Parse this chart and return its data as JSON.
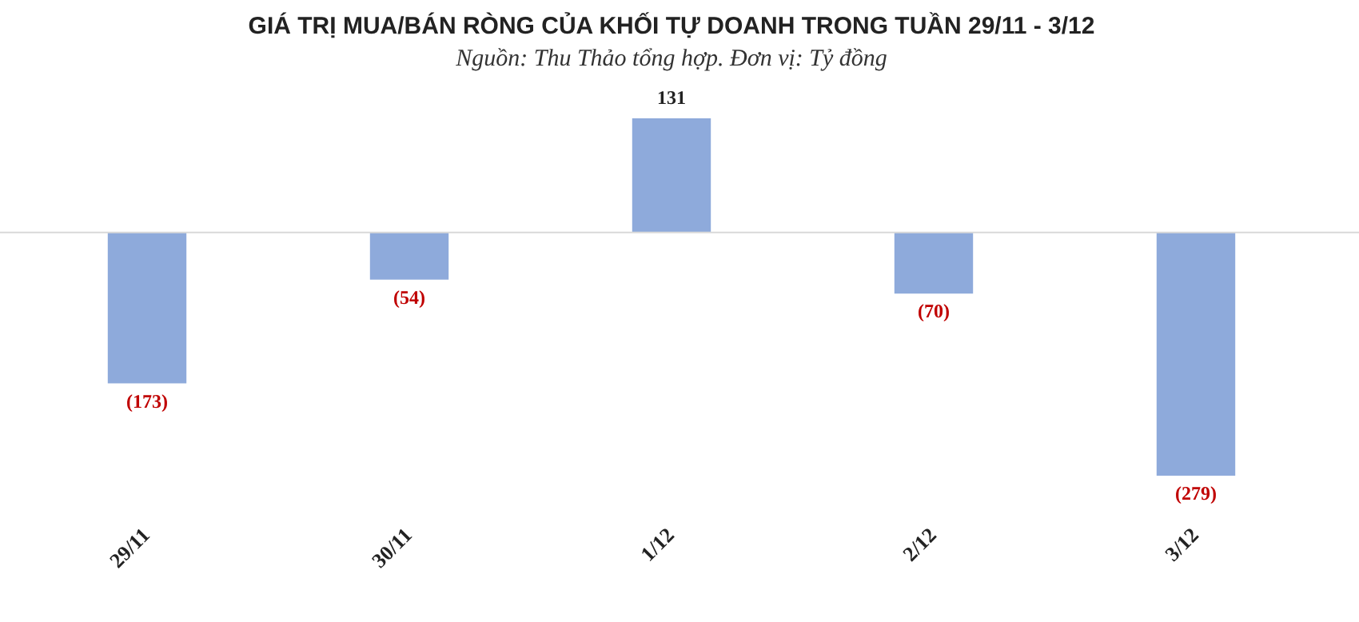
{
  "chart_data": {
    "type": "bar",
    "title": "GIÁ TRỊ MUA/BÁN RÒNG CỦA KHỐI TỰ DOANH TRONG TUẦN 29/11 - 3/12",
    "subtitle": "Nguồn: Thu Thảo tổng hợp. Đơn vị: Tỷ đồng",
    "categories": [
      "29/11",
      "30/11",
      "1/12",
      "2/12",
      "3/12"
    ],
    "values": [
      -173,
      -54,
      131,
      -70,
      -279
    ],
    "value_labels": [
      "(173)",
      "(54)",
      "131",
      "(70)",
      "(279)"
    ],
    "color": "#8eaadb",
    "grid": false,
    "legend": false
  }
}
